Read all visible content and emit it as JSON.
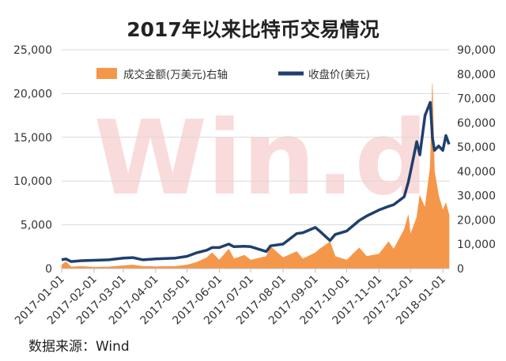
{
  "chart_data": {
    "type": "bar+line",
    "title": "2017年以来比特币交易情况",
    "source": "数据来源：Wind",
    "watermark": "Win.d",
    "colors": {
      "volume": "#f5974a",
      "price": "#1f3f6e"
    },
    "y_left": {
      "min": 0,
      "max": 25000,
      "ticks": [
        "0",
        "5,000",
        "10,000",
        "15,000",
        "20,000",
        "25,000"
      ]
    },
    "y_right": {
      "min": 0,
      "max": 90000,
      "ticks": [
        "0",
        "10,000",
        "20,000",
        "30,000",
        "40,000",
        "50,000",
        "60,000",
        "70,000",
        "80,000",
        "90,000"
      ]
    },
    "x_ticks": [
      "2017-01-01",
      "2017-02-01",
      "2017-03-01",
      "2017-04-01",
      "2017-05-01",
      "2017-06-01",
      "2017-07-01",
      "2017-08-01",
      "2017-09-01",
      "2017-10-01",
      "2017-11-01",
      "2017-12-01",
      "2018-01-01"
    ],
    "x_range": [
      "2017-01-01",
      "2018-01-07"
    ],
    "grid": true,
    "legend_position": "top-center",
    "series": [
      {
        "name": "成交金额(万美元)右轴",
        "kind": "area",
        "axis": "right",
        "points": [
          [
            "2017-01-01",
            1500
          ],
          [
            "2017-01-05",
            2800
          ],
          [
            "2017-01-10",
            700
          ],
          [
            "2017-01-20",
            900
          ],
          [
            "2017-02-01",
            600
          ],
          [
            "2017-02-15",
            700
          ],
          [
            "2017-03-01",
            1200
          ],
          [
            "2017-03-10",
            1500
          ],
          [
            "2017-03-20",
            900
          ],
          [
            "2017-04-01",
            800
          ],
          [
            "2017-04-20",
            900
          ],
          [
            "2017-05-01",
            1500
          ],
          [
            "2017-05-10",
            2500
          ],
          [
            "2017-05-20",
            4500
          ],
          [
            "2017-05-25",
            6500
          ],
          [
            "2017-06-01",
            3500
          ],
          [
            "2017-06-10",
            8000
          ],
          [
            "2017-06-15",
            4000
          ],
          [
            "2017-06-25",
            5500
          ],
          [
            "2017-07-01",
            3500
          ],
          [
            "2017-07-16",
            5000
          ],
          [
            "2017-07-20",
            9000
          ],
          [
            "2017-08-01",
            4500
          ],
          [
            "2017-08-14",
            7000
          ],
          [
            "2017-08-20",
            4000
          ],
          [
            "2017-09-01",
            6500
          ],
          [
            "2017-09-05",
            8000
          ],
          [
            "2017-09-15",
            11000
          ],
          [
            "2017-09-20",
            5000
          ],
          [
            "2017-10-01",
            3500
          ],
          [
            "2017-10-13",
            8500
          ],
          [
            "2017-10-20",
            5000
          ],
          [
            "2017-11-01",
            6000
          ],
          [
            "2017-11-10",
            11000
          ],
          [
            "2017-11-15",
            8000
          ],
          [
            "2017-11-25",
            16000
          ],
          [
            "2017-11-29",
            22000
          ],
          [
            "2017-12-01",
            14000
          ],
          [
            "2017-12-07",
            21000
          ],
          [
            "2017-12-10",
            30000
          ],
          [
            "2017-12-15",
            25000
          ],
          [
            "2017-12-20",
            42000
          ],
          [
            "2017-12-22",
            76000
          ],
          [
            "2017-12-24",
            40000
          ],
          [
            "2017-12-28",
            30000
          ],
          [
            "2018-01-01",
            24000
          ],
          [
            "2018-01-04",
            27000
          ],
          [
            "2018-01-07",
            22000
          ]
        ]
      },
      {
        "name": "收盘价(美元)",
        "kind": "line",
        "axis": "left",
        "points": [
          [
            "2017-01-01",
            1000
          ],
          [
            "2017-01-05",
            1100
          ],
          [
            "2017-01-10",
            800
          ],
          [
            "2017-01-20",
            900
          ],
          [
            "2017-02-01",
            950
          ],
          [
            "2017-02-15",
            1000
          ],
          [
            "2017-03-01",
            1200
          ],
          [
            "2017-03-10",
            1250
          ],
          [
            "2017-03-20",
            1000
          ],
          [
            "2017-04-01",
            1100
          ],
          [
            "2017-04-20",
            1200
          ],
          [
            "2017-05-01",
            1400
          ],
          [
            "2017-05-10",
            1800
          ],
          [
            "2017-05-20",
            2100
          ],
          [
            "2017-05-25",
            2400
          ],
          [
            "2017-06-01",
            2400
          ],
          [
            "2017-06-10",
            2800
          ],
          [
            "2017-06-15",
            2500
          ],
          [
            "2017-06-25",
            2550
          ],
          [
            "2017-07-01",
            2500
          ],
          [
            "2017-07-16",
            1950
          ],
          [
            "2017-07-20",
            2600
          ],
          [
            "2017-08-01",
            2800
          ],
          [
            "2017-08-14",
            4000
          ],
          [
            "2017-08-20",
            4100
          ],
          [
            "2017-09-01",
            4700
          ],
          [
            "2017-09-05",
            4300
          ],
          [
            "2017-09-15",
            3200
          ],
          [
            "2017-09-20",
            3900
          ],
          [
            "2017-10-01",
            4300
          ],
          [
            "2017-10-13",
            5500
          ],
          [
            "2017-10-20",
            6000
          ],
          [
            "2017-11-01",
            6700
          ],
          [
            "2017-11-10",
            7100
          ],
          [
            "2017-11-15",
            7300
          ],
          [
            "2017-11-25",
            8200
          ],
          [
            "2017-11-29",
            9900
          ],
          [
            "2017-12-01",
            11000
          ],
          [
            "2017-12-07",
            14500
          ],
          [
            "2017-12-10",
            13000
          ],
          [
            "2017-12-15",
            17500
          ],
          [
            "2017-12-20",
            19000
          ],
          [
            "2017-12-22",
            15000
          ],
          [
            "2017-12-24",
            13500
          ],
          [
            "2017-12-28",
            14000
          ],
          [
            "2018-01-01",
            13500
          ],
          [
            "2018-01-04",
            15200
          ],
          [
            "2018-01-07",
            14200
          ]
        ]
      }
    ]
  }
}
